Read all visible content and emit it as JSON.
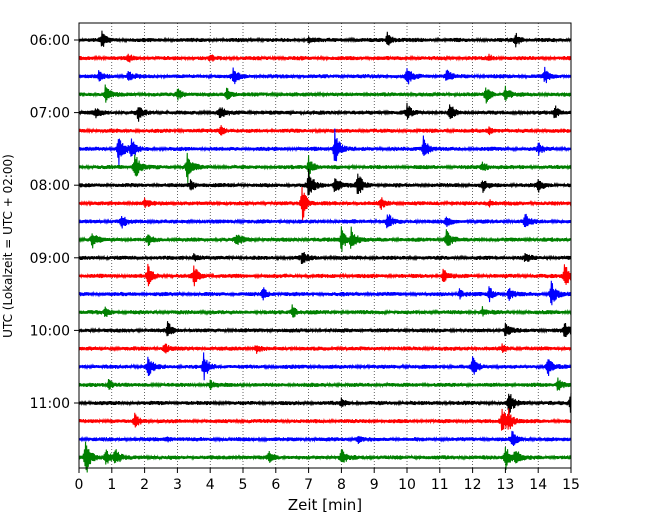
{
  "chart_data": {
    "type": "line",
    "chart_kind": "helicorder",
    "title": "",
    "xlabel": "Zeit  [min]",
    "ylabel": "UTC (Lokalzeit = UTC + 02:00)",
    "xlim": [
      0,
      15
    ],
    "x_ticks": [
      0,
      1,
      2,
      3,
      4,
      5,
      6,
      7,
      8,
      9,
      10,
      11,
      12,
      13,
      14,
      15
    ],
    "y_tick_labels": [
      "06:00",
      "07:00",
      "08:00",
      "09:00",
      "10:00",
      "11:00"
    ],
    "y_tick_trace_index": [
      0,
      4,
      8,
      12,
      16,
      20
    ],
    "trace_minutes": 15,
    "start_time": "06:00",
    "trace_count": 24,
    "trace_colors": [
      "#000000",
      "#ff0000",
      "#0000ff",
      "#008000"
    ],
    "grid": "vertical dotted",
    "legend": "none",
    "events": [
      [
        0,
        0.7,
        0.45
      ],
      [
        0,
        9.4,
        0.45
      ],
      [
        0,
        13.3,
        0.4
      ],
      [
        0,
        7.0,
        0.15
      ],
      [
        1,
        1.5,
        0.2
      ],
      [
        1,
        4.0,
        0.15
      ],
      [
        1,
        12.5,
        0.15
      ],
      [
        2,
        0.6,
        0.25
      ],
      [
        2,
        1.5,
        0.3
      ],
      [
        2,
        4.7,
        0.5
      ],
      [
        2,
        10.0,
        0.5
      ],
      [
        2,
        11.2,
        0.35
      ],
      [
        2,
        14.2,
        0.4
      ],
      [
        3,
        0.8,
        0.45
      ],
      [
        3,
        3.0,
        0.35
      ],
      [
        3,
        4.5,
        0.35
      ],
      [
        3,
        12.4,
        0.45
      ],
      [
        3,
        13.0,
        0.4
      ],
      [
        4,
        0.5,
        0.3
      ],
      [
        4,
        1.8,
        0.45
      ],
      [
        4,
        4.3,
        0.45
      ],
      [
        4,
        10.0,
        0.45
      ],
      [
        4,
        11.3,
        0.5
      ],
      [
        4,
        14.5,
        0.4
      ],
      [
        5,
        4.3,
        0.3
      ],
      [
        5,
        12.5,
        0.2
      ],
      [
        6,
        1.2,
        1.0
      ],
      [
        6,
        1.6,
        0.6
      ],
      [
        6,
        7.8,
        1.1
      ],
      [
        6,
        10.5,
        0.75
      ],
      [
        6,
        14.0,
        0.3
      ],
      [
        7,
        1.7,
        0.9
      ],
      [
        7,
        3.3,
        0.95
      ],
      [
        7,
        7.0,
        0.6
      ],
      [
        7,
        12.3,
        0.3
      ],
      [
        8,
        7.0,
        0.9
      ],
      [
        8,
        7.8,
        0.6
      ],
      [
        8,
        8.5,
        0.7
      ],
      [
        8,
        3.4,
        0.3
      ],
      [
        8,
        12.3,
        0.35
      ],
      [
        8,
        14.0,
        0.35
      ],
      [
        9,
        6.8,
        1.05
      ],
      [
        9,
        9.2,
        0.3
      ],
      [
        9,
        2.0,
        0.2
      ],
      [
        9,
        12.5,
        0.2
      ],
      [
        10,
        1.3,
        0.35
      ],
      [
        10,
        9.4,
        0.5
      ],
      [
        10,
        11.2,
        0.3
      ],
      [
        10,
        13.6,
        0.4
      ],
      [
        11,
        0.4,
        0.45
      ],
      [
        11,
        2.1,
        0.3
      ],
      [
        11,
        4.8,
        0.45
      ],
      [
        11,
        8.0,
        0.7
      ],
      [
        11,
        8.3,
        0.7
      ],
      [
        11,
        11.2,
        0.6
      ],
      [
        12,
        6.8,
        0.45
      ],
      [
        12,
        3.5,
        0.2
      ],
      [
        12,
        13.6,
        0.25
      ],
      [
        13,
        2.1,
        0.6
      ],
      [
        13,
        3.5,
        0.6
      ],
      [
        13,
        11.1,
        0.4
      ],
      [
        13,
        14.8,
        0.85
      ],
      [
        14,
        5.6,
        0.35
      ],
      [
        14,
        11.6,
        0.25
      ],
      [
        14,
        12.5,
        0.4
      ],
      [
        14,
        13.1,
        0.35
      ],
      [
        14,
        14.4,
        0.75
      ],
      [
        15,
        0.8,
        0.25
      ],
      [
        15,
        6.5,
        0.35
      ],
      [
        15,
        12.3,
        0.25
      ],
      [
        16,
        2.7,
        0.45
      ],
      [
        16,
        13.0,
        0.4
      ],
      [
        16,
        14.8,
        0.45
      ],
      [
        17,
        2.6,
        0.3
      ],
      [
        17,
        5.4,
        0.25
      ],
      [
        17,
        12.9,
        0.2
      ],
      [
        18,
        2.1,
        0.6
      ],
      [
        18,
        3.8,
        0.75
      ],
      [
        18,
        12.0,
        0.55
      ],
      [
        18,
        14.3,
        0.6
      ],
      [
        19,
        0.9,
        0.3
      ],
      [
        19,
        4.0,
        0.25
      ],
      [
        19,
        14.6,
        0.45
      ],
      [
        20,
        13.1,
        0.7
      ],
      [
        20,
        15.0,
        0.9
      ],
      [
        20,
        8.0,
        0.2
      ],
      [
        21,
        1.7,
        0.35
      ],
      [
        21,
        12.9,
        0.75
      ],
      [
        21,
        13.1,
        0.5
      ],
      [
        22,
        13.2,
        0.45
      ],
      [
        22,
        2.7,
        0.15
      ],
      [
        22,
        8.5,
        0.2
      ],
      [
        23,
        0.2,
        1.1
      ],
      [
        23,
        0.8,
        0.5
      ],
      [
        23,
        1.1,
        0.45
      ],
      [
        23,
        5.8,
        0.4
      ],
      [
        23,
        8.0,
        0.45
      ],
      [
        23,
        13.0,
        0.75
      ],
      [
        23,
        13.3,
        0.45
      ]
    ]
  }
}
